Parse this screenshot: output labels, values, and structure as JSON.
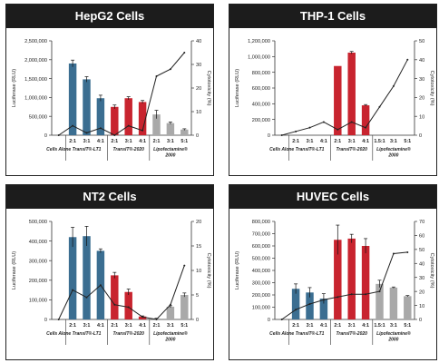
{
  "colors": {
    "transit_lt1": "#3b6e91",
    "transit_2020": "#c8242f",
    "lipofectamine": "#a9a9a9",
    "line": "#222222",
    "header_bg": "#1c1c1c"
  },
  "chart_data": [
    {
      "type": "bar",
      "title": "HepG2 Cells",
      "ylabel": "Luciferase (RLU)",
      "y2label": "Cytotoxicity (%)",
      "ylim": [
        0,
        2500000
      ],
      "y2lim": [
        0,
        40
      ],
      "yticks": [
        "2,500,000",
        "2,000,000",
        "1,500,000",
        "1,000,000",
        "500,000",
        "0"
      ],
      "y2ticks": [
        "40",
        "30",
        "20",
        "10",
        "0"
      ],
      "categories": [
        "",
        "2:1",
        "3:1",
        "4:1",
        "2:1",
        "3:1",
        "4:1",
        "2:1",
        "3:1",
        "5:1"
      ],
      "groups": [
        {
          "label": "Cells Alone",
          "from": 0,
          "to": 0
        },
        {
          "label": "TransIT®-LT1",
          "from": 1,
          "to": 3
        },
        {
          "label": "TransIT®-2020",
          "from": 4,
          "to": 6
        },
        {
          "label": "Lipofectamine® 2000",
          "from": 7,
          "to": 9
        }
      ],
      "bar_values": [
        0,
        1900000,
        1480000,
        980000,
        750000,
        980000,
        880000,
        550000,
        320000,
        150000
      ],
      "bar_errors": [
        0,
        90000,
        70000,
        80000,
        50000,
        40000,
        40000,
        110000,
        30000,
        20000
      ],
      "bar_colors": [
        "",
        "transit_lt1",
        "transit_lt1",
        "transit_lt1",
        "transit_2020",
        "transit_2020",
        "transit_2020",
        "lipofectamine",
        "lipofectamine",
        "lipofectamine"
      ],
      "cytotoxicity": [
        0,
        4,
        1,
        3,
        0,
        4,
        2,
        25,
        28,
        35
      ]
    },
    {
      "type": "bar",
      "title": "THP-1 Cells",
      "ylabel": "Luciferase (RLU)",
      "y2label": "Cytotoxicity (%)",
      "ylim": [
        0,
        1200000
      ],
      "y2lim": [
        0,
        50
      ],
      "yticks": [
        "1,200,000",
        "1,000,000",
        "800,000",
        "600,000",
        "400,000",
        "200,000",
        "0"
      ],
      "y2ticks": [
        "50",
        "40",
        "30",
        "20",
        "10",
        "0"
      ],
      "categories": [
        "",
        "2:1",
        "3:1",
        "4:1",
        "2:1",
        "3:1",
        "4:1",
        "1.5:1",
        "3:1",
        "5:1"
      ],
      "groups": [
        {
          "label": "Cells Alone",
          "from": 0,
          "to": 0
        },
        {
          "label": "TransIT®-LT1",
          "from": 1,
          "to": 3
        },
        {
          "label": "TransIT®-2020",
          "from": 4,
          "to": 6
        },
        {
          "label": "Lipofectamine® 2000",
          "from": 7,
          "to": 9
        }
      ],
      "bar_values": [
        0,
        0,
        0,
        0,
        880000,
        1050000,
        380000,
        0,
        0,
        0
      ],
      "bar_errors": [
        0,
        0,
        0,
        0,
        0,
        15000,
        10000,
        0,
        0,
        0
      ],
      "bar_colors": [
        "",
        "transit_lt1",
        "transit_lt1",
        "transit_lt1",
        "transit_2020",
        "transit_2020",
        "transit_2020",
        "lipofectamine",
        "lipofectamine",
        "lipofectamine"
      ],
      "cytotoxicity": [
        0,
        2,
        4,
        7,
        3,
        7,
        4,
        15,
        26,
        40
      ]
    },
    {
      "type": "bar",
      "title": "NT2 Cells",
      "ylabel": "Luciferase (RLU)",
      "y2label": "Cytotoxicity (%)",
      "ylim": [
        0,
        500000
      ],
      "y2lim": [
        0,
        20
      ],
      "yticks": [
        "500,000",
        "400,000",
        "300,000",
        "200,000",
        "100,000",
        "0"
      ],
      "y2ticks": [
        "20",
        "15",
        "10",
        "5",
        "0"
      ],
      "categories": [
        "",
        "2:1",
        "3:1",
        "4:1",
        "2:1",
        "3:1",
        "4:1",
        "2:1",
        "3:1",
        "5:1"
      ],
      "groups": [
        {
          "label": "Cells Alone",
          "from": 0,
          "to": 0
        },
        {
          "label": "TransIT®-LT1",
          "from": 1,
          "to": 3
        },
        {
          "label": "TransIT®-2020",
          "from": 4,
          "to": 6
        },
        {
          "label": "Lipofectamine® 2000",
          "from": 7,
          "to": 9
        }
      ],
      "bar_values": [
        0,
        420000,
        425000,
        350000,
        225000,
        140000,
        15000,
        5000,
        65000,
        125000
      ],
      "bar_errors": [
        0,
        50000,
        50000,
        10000,
        15000,
        15000,
        3000,
        1000,
        5000,
        10000
      ],
      "bar_colors": [
        "",
        "transit_lt1",
        "transit_lt1",
        "transit_lt1",
        "transit_2020",
        "transit_2020",
        "transit_2020",
        "lipofectamine",
        "lipofectamine",
        "lipofectamine"
      ],
      "cytotoxicity": [
        0,
        6,
        4.5,
        7,
        3,
        2.5,
        0.5,
        0,
        3,
        11
      ]
    },
    {
      "type": "bar",
      "title": "HUVEC Cells",
      "ylabel": "Luciferase (RLU)",
      "y2label": "Cytotoxicity (%)",
      "ylim": [
        0,
        800000
      ],
      "y2lim": [
        0,
        70
      ],
      "yticks": [
        "800,000",
        "700,000",
        "600,000",
        "500,000",
        "400,000",
        "300,000",
        "200,000",
        "100,000",
        "0"
      ],
      "y2ticks": [
        "70",
        "60",
        "50",
        "40",
        "30",
        "20",
        "10",
        "0"
      ],
      "categories": [
        "",
        "2:1",
        "3:1",
        "4:1",
        "2:1",
        "3:1",
        "4:1",
        "1.5:1",
        "3:1",
        "5:1"
      ],
      "groups": [
        {
          "label": "Cells Alone",
          "from": 0,
          "to": 0
        },
        {
          "label": "TransIT®-LT1",
          "from": 1,
          "to": 3
        },
        {
          "label": "TransIT®-2020",
          "from": 4,
          "to": 6
        },
        {
          "label": "Lipofectamine® 2000",
          "from": 7,
          "to": 9
        }
      ],
      "bar_values": [
        0,
        250000,
        220000,
        170000,
        650000,
        660000,
        600000,
        290000,
        260000,
        190000
      ],
      "bar_errors": [
        0,
        40000,
        40000,
        40000,
        120000,
        35000,
        60000,
        30000,
        5000,
        5000
      ],
      "bar_colors": [
        "",
        "transit_lt1",
        "transit_lt1",
        "transit_lt1",
        "transit_2020",
        "transit_2020",
        "transit_2020",
        "lipofectamine",
        "lipofectamine",
        "lipofectamine"
      ],
      "cytotoxicity": [
        0,
        7,
        11,
        14,
        16,
        18,
        18,
        20,
        47,
        48
      ]
    }
  ]
}
